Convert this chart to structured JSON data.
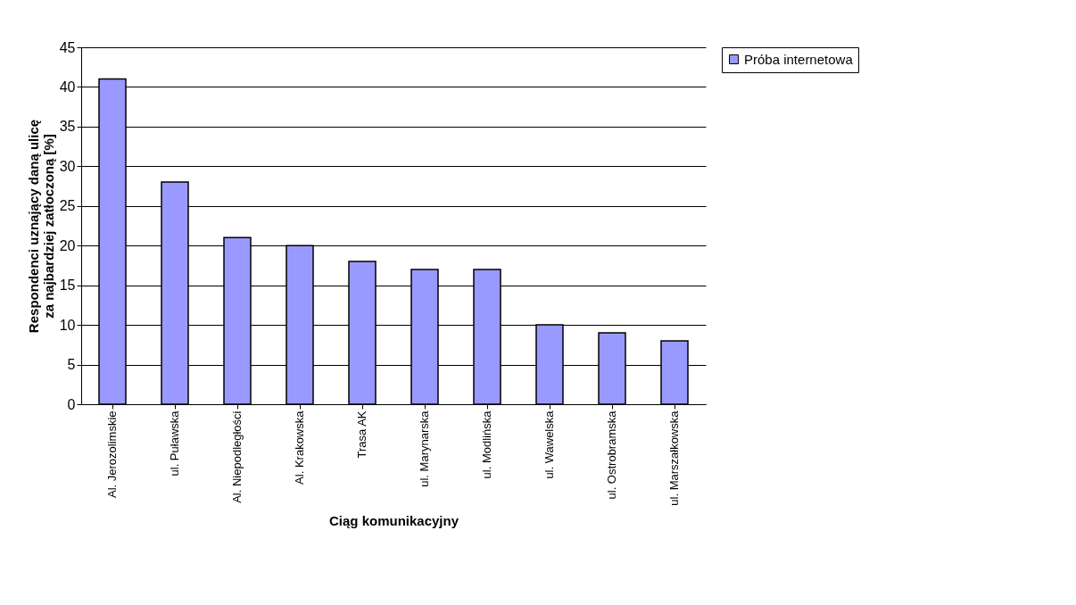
{
  "chart_data": {
    "type": "bar",
    "xlabel": "Ciąg komunikacyjny",
    "ylabel": "Respondenci uznający daną ulicę za najbardziej zatłoczoną [%]",
    "categories": [
      "Al. Jerozolimskie",
      "ul. Puławska",
      "Al. Niepodległości",
      "Al. Krakowska",
      "Trasa AK",
      "ul. Marynarska",
      "ul. Modlińska",
      "ul. Wawelska",
      "ul. Ostrobramska",
      "ul. Marszałkowska"
    ],
    "series": [
      {
        "name": "Próba internetowa",
        "color": "#9999ff",
        "values": [
          41,
          28,
          21,
          20,
          18,
          17,
          17,
          10,
          9,
          8
        ]
      }
    ],
    "ylim": [
      0,
      45
    ],
    "yticks": [
      0,
      5,
      10,
      15,
      20,
      25,
      30,
      35,
      40,
      45
    ],
    "grid": "y",
    "legend": "right"
  }
}
